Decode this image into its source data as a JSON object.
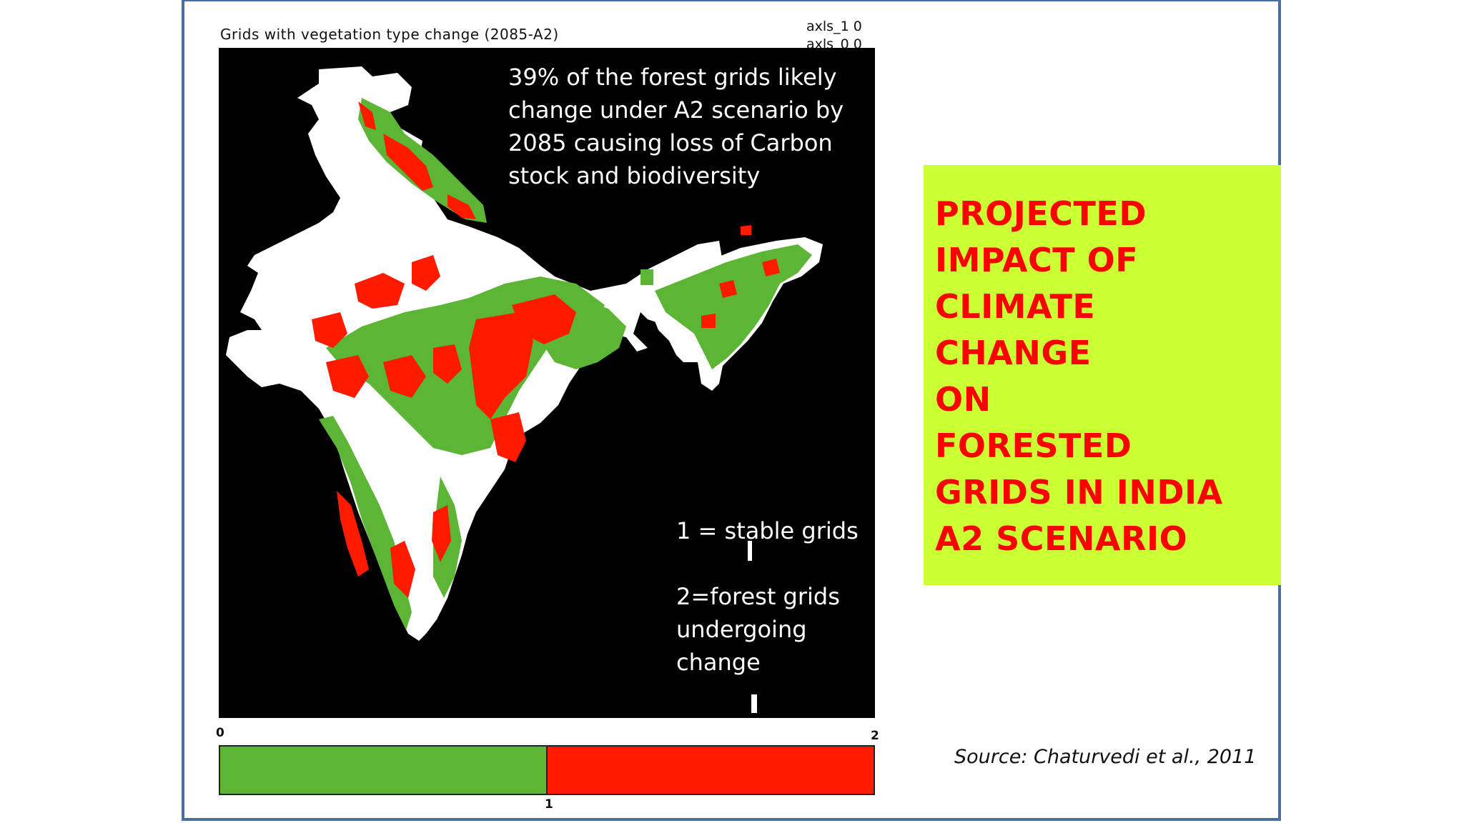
{
  "slide": {
    "map_title": "Grids with vegetation type change (2085-A2)",
    "axis_labels": [
      "axls_1 0",
      "axls_0 0"
    ],
    "annotation": "39% of the forest grids likely change under A2 scenario by 2085 causing loss of Carbon stock and biodiversity",
    "legend_key_1": "1 = stable grids",
    "legend_key_2": "2=forest grids undergoing change",
    "scale": {
      "tick_min": "0",
      "tick_mid": "1",
      "tick_max": "2",
      "stable_color": "#5cb534",
      "change_color": "#ff1a00"
    },
    "callout_title": "PROJECTED\nIMPACT OF\nCLIMATE\nCHANGE\nON\nFORESTED\nGRIDS IN INDIA\nA2 SCENARIO",
    "source": "Source: Chaturvedi et al., 2011"
  },
  "colors": {
    "map_background": "#000000",
    "land": "#ffffff",
    "stable_grids": "#5cb534",
    "changing_grids": "#ff1a00",
    "callout_background": "#ccff33",
    "callout_text": "#ff0000",
    "frame_border": "#4a6fa5"
  }
}
